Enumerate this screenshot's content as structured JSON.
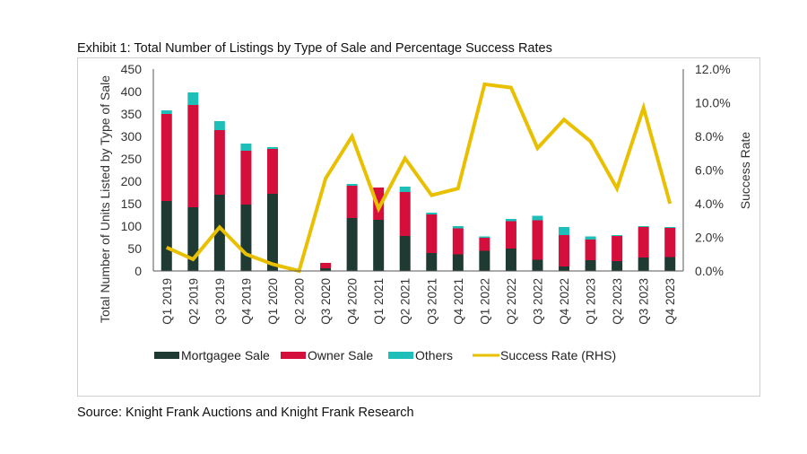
{
  "title": "Exhibit 1: Total Number of Listings by Type of Sale and Percentage Success Rates",
  "source": "Source: Knight Frank Auctions and Knight Frank Research",
  "colors": {
    "mortgagee": "#1f3a33",
    "owner": "#d40f3c",
    "others": "#1dbfb8",
    "success": "#e8c000"
  },
  "chart_data": {
    "type": "bar",
    "title": "Exhibit 1: Total Number of Listings by Type of Sale and Percentage Success Rates",
    "xlabel": "",
    "ylabel": "Total Number of Units Listed by Type of Sale",
    "y2label": "Success Rate",
    "ylim": [
      0,
      450
    ],
    "y2lim": [
      0,
      12
    ],
    "yticks": [
      "0",
      "50",
      "100",
      "150",
      "200",
      "250",
      "300",
      "350",
      "400",
      "450"
    ],
    "y2ticks": [
      "0.0%",
      "2.0%",
      "4.0%",
      "6.0%",
      "8.0%",
      "10.0%",
      "12.0%"
    ],
    "grid": false,
    "legend_position": "bottom",
    "categories": [
      "Q1 2019",
      "Q2 2019",
      "Q3 2019",
      "Q4 2019",
      "Q1 2020",
      "Q2 2020",
      "Q3 2020",
      "Q4 2020",
      "Q1 2021",
      "Q2 2021",
      "Q3 2021",
      "Q4 2021",
      "Q1 2022",
      "Q2 2022",
      "Q3 2022",
      "Q4 2022",
      "Q1 2023",
      "Q2 2023",
      "Q3 2023",
      "Q4 2023"
    ],
    "series": [
      {
        "name": "Mortgagee Sale",
        "kind": "stacked-bar",
        "axis": "left",
        "values": [
          156,
          142,
          170,
          148,
          172,
          0,
          6,
          118,
          114,
          78,
          40,
          37,
          45,
          50,
          25,
          10,
          24,
          22,
          30,
          31
        ]
      },
      {
        "name": "Owner Sale",
        "kind": "stacked-bar",
        "axis": "left",
        "values": [
          194,
          228,
          144,
          120,
          100,
          0,
          12,
          72,
          72,
          98,
          86,
          58,
          29,
          61,
          88,
          70,
          46,
          56,
          68,
          65
        ]
      },
      {
        "name": "Others",
        "kind": "stacked-bar",
        "axis": "left",
        "values": [
          8,
          28,
          20,
          16,
          4,
          0,
          0,
          4,
          0,
          12,
          4,
          5,
          3,
          5,
          10,
          18,
          7,
          2,
          2,
          2
        ]
      },
      {
        "name": "Success Rate (RHS)",
        "kind": "line",
        "axis": "right",
        "unit": "%",
        "values": [
          1.4,
          0.7,
          2.6,
          1.0,
          0.4,
          0.0,
          5.5,
          8.0,
          3.7,
          6.7,
          4.5,
          4.9,
          11.1,
          10.9,
          7.3,
          9.0,
          7.7,
          4.9,
          9.7,
          4.0
        ]
      }
    ]
  }
}
